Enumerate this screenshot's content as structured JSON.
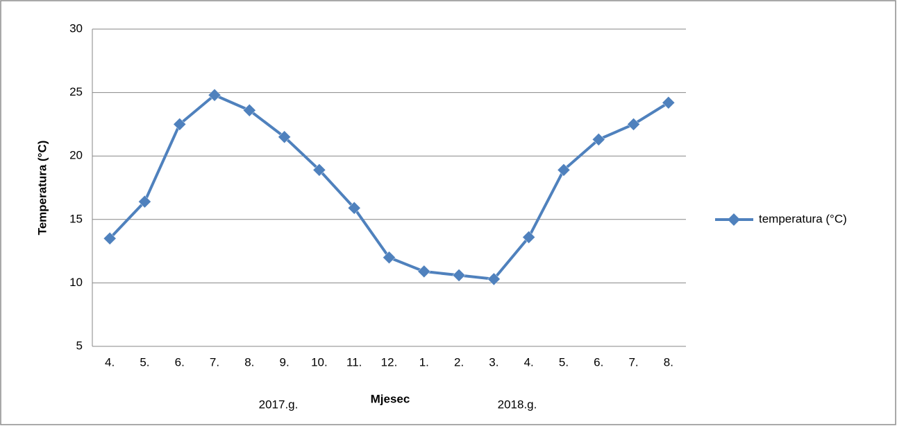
{
  "chart_data": {
    "type": "line",
    "y_label": "Temperatura (°C)",
    "x_label": "Mjesec",
    "categories": [
      "4.",
      "5.",
      "6.",
      "7.",
      "8.",
      "9.",
      "10.",
      "11.",
      "12.",
      "1.",
      "2.",
      "3.",
      "4.",
      "5.",
      "6.",
      "7.",
      "8."
    ],
    "series": [
      {
        "name": "temperatura (°C)",
        "color": "#4f81bd",
        "values": [
          13.5,
          16.4,
          22.5,
          24.8,
          23.6,
          21.5,
          18.9,
          15.9,
          12.0,
          10.9,
          10.6,
          10.3,
          13.6,
          18.9,
          21.3,
          22.5,
          24.2
        ]
      }
    ],
    "annotations": [
      "2017.g.",
      "2018.g."
    ],
    "ylim": [
      5,
      30
    ],
    "yticks": [
      5,
      10,
      15,
      20,
      25,
      30
    ],
    "grid": true,
    "legend": "right"
  }
}
